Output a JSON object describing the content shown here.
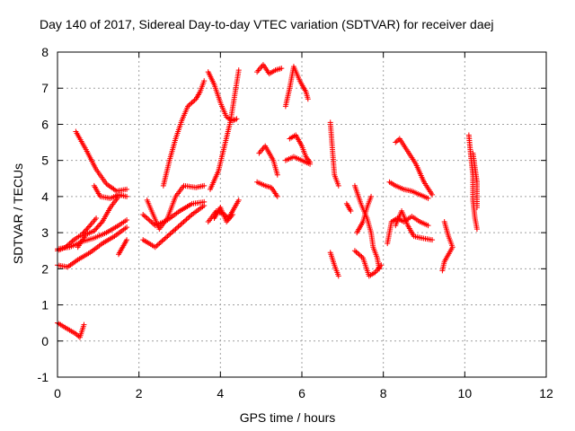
{
  "chart_data": {
    "type": "scatter",
    "title": "Day 140 of 2017, Sidereal Day-to-day VTEC variation (SDTVAR) for receiver daej",
    "xlabel": "GPS time / hours",
    "ylabel": "SDTVAR / TECUs",
    "xlim": [
      0,
      12
    ],
    "ylim": [
      -1,
      8
    ],
    "xticks": [
      "0",
      "2",
      "4",
      "6",
      "8",
      "10",
      "12"
    ],
    "yticks": [
      "-1",
      "0",
      "1",
      "2",
      "3",
      "4",
      "5",
      "6",
      "7",
      "8"
    ],
    "grid": true,
    "marker": "plus",
    "color": "#ff0000",
    "tracks": [
      [
        [
          0.0,
          2.55
        ],
        [
          0.3,
          2.6
        ],
        [
          0.6,
          2.75
        ],
        [
          0.9,
          2.85
        ],
        [
          1.2,
          3.0
        ],
        [
          1.5,
          3.2
        ],
        [
          1.7,
          3.35
        ]
      ],
      [
        [
          0.0,
          2.1
        ],
        [
          0.25,
          2.05
        ],
        [
          0.5,
          2.25
        ],
        [
          0.8,
          2.45
        ],
        [
          1.1,
          2.7
        ],
        [
          1.4,
          2.9
        ],
        [
          1.7,
          3.15
        ]
      ],
      [
        [
          0.0,
          2.5
        ],
        [
          0.2,
          2.6
        ],
        [
          0.4,
          2.8
        ],
        [
          0.6,
          2.95
        ],
        [
          0.8,
          3.2
        ],
        [
          0.95,
          3.4
        ]
      ],
      [
        [
          0.45,
          5.8
        ],
        [
          0.7,
          5.3
        ],
        [
          0.95,
          4.75
        ],
        [
          1.2,
          4.35
        ],
        [
          1.45,
          4.15
        ],
        [
          1.7,
          4.2
        ]
      ],
      [
        [
          0.9,
          4.3
        ],
        [
          1.05,
          4.0
        ],
        [
          1.3,
          3.95
        ],
        [
          1.5,
          4.05
        ],
        [
          1.7,
          4.0
        ]
      ],
      [
        [
          0.5,
          2.6
        ],
        [
          0.7,
          2.95
        ],
        [
          0.9,
          3.05
        ],
        [
          1.1,
          3.3
        ],
        [
          1.3,
          3.7
        ],
        [
          1.5,
          4.0
        ]
      ],
      [
        [
          0.0,
          0.5
        ],
        [
          0.15,
          0.4
        ],
        [
          0.3,
          0.3
        ],
        [
          0.45,
          0.2
        ],
        [
          0.55,
          0.1
        ],
        [
          0.65,
          0.45
        ]
      ],
      [
        [
          1.5,
          2.4
        ],
        [
          1.6,
          2.6
        ],
        [
          1.7,
          2.8
        ]
      ],
      [
        [
          2.1,
          2.8
        ],
        [
          2.4,
          2.6
        ],
        [
          2.7,
          2.9
        ],
        [
          3.0,
          3.2
        ],
        [
          3.3,
          3.5
        ],
        [
          3.6,
          3.75
        ]
      ],
      [
        [
          2.1,
          3.5
        ],
        [
          2.4,
          3.2
        ],
        [
          2.7,
          3.35
        ],
        [
          3.0,
          3.6
        ],
        [
          3.3,
          3.8
        ],
        [
          3.6,
          3.85
        ]
      ],
      [
        [
          2.2,
          3.9
        ],
        [
          2.5,
          3.1
        ],
        [
          2.7,
          3.4
        ],
        [
          2.9,
          4.0
        ],
        [
          3.1,
          4.3
        ],
        [
          3.4,
          4.25
        ],
        [
          3.6,
          4.3
        ]
      ],
      [
        [
          2.6,
          4.3
        ],
        [
          2.75,
          5.0
        ],
        [
          2.9,
          5.6
        ],
        [
          3.05,
          6.1
        ],
        [
          3.2,
          6.5
        ],
        [
          3.4,
          6.7
        ],
        [
          3.5,
          6.9
        ],
        [
          3.6,
          7.2
        ]
      ],
      [
        [
          3.7,
          7.45
        ],
        [
          3.85,
          7.1
        ],
        [
          4.0,
          6.6
        ],
        [
          4.15,
          6.2
        ],
        [
          4.3,
          6.1
        ],
        [
          4.4,
          6.15
        ]
      ],
      [
        [
          3.75,
          4.2
        ],
        [
          3.95,
          4.7
        ],
        [
          4.1,
          5.4
        ],
        [
          4.25,
          6.1
        ],
        [
          4.35,
          6.8
        ],
        [
          4.45,
          7.5
        ]
      ],
      [
        [
          3.7,
          3.3
        ],
        [
          3.9,
          3.6
        ],
        [
          4.1,
          3.5
        ],
        [
          4.2,
          3.4
        ],
        [
          4.3,
          3.6
        ],
        [
          4.45,
          3.9
        ]
      ],
      [
        [
          3.85,
          3.4
        ],
        [
          4.0,
          3.7
        ],
        [
          4.15,
          3.3
        ],
        [
          4.3,
          3.5
        ]
      ],
      [
        [
          4.9,
          7.45
        ],
        [
          5.05,
          7.65
        ],
        [
          5.2,
          7.4
        ],
        [
          5.35,
          7.5
        ],
        [
          5.5,
          7.55
        ]
      ],
      [
        [
          4.9,
          4.4
        ],
        [
          5.1,
          4.3
        ],
        [
          5.25,
          4.25
        ],
        [
          5.4,
          4.0
        ]
      ],
      [
        [
          4.95,
          5.2
        ],
        [
          5.1,
          5.4
        ],
        [
          5.3,
          5.0
        ],
        [
          5.4,
          4.6
        ]
      ],
      [
        [
          5.6,
          6.5
        ],
        [
          5.7,
          7.0
        ],
        [
          5.8,
          7.6
        ],
        [
          5.95,
          7.2
        ],
        [
          6.1,
          6.9
        ],
        [
          6.15,
          6.7
        ]
      ],
      [
        [
          5.7,
          5.6
        ],
        [
          5.85,
          5.7
        ],
        [
          6.0,
          5.4
        ],
        [
          6.1,
          5.1
        ],
        [
          6.2,
          4.95
        ]
      ],
      [
        [
          5.6,
          5.0
        ],
        [
          5.8,
          5.1
        ],
        [
          6.0,
          5.0
        ],
        [
          6.2,
          4.9
        ]
      ],
      [
        [
          6.7,
          6.05
        ],
        [
          6.75,
          5.3
        ],
        [
          6.8,
          4.6
        ],
        [
          6.9,
          4.3
        ]
      ],
      [
        [
          6.7,
          2.45
        ],
        [
          6.8,
          2.1
        ],
        [
          6.9,
          1.8
        ]
      ],
      [
        [
          7.3,
          4.3
        ],
        [
          7.45,
          3.8
        ],
        [
          7.6,
          3.4
        ],
        [
          7.7,
          3.0
        ],
        [
          7.75,
          2.6
        ],
        [
          7.85,
          2.3
        ],
        [
          7.9,
          2.0
        ]
      ],
      [
        [
          7.3,
          2.5
        ],
        [
          7.5,
          2.3
        ],
        [
          7.65,
          1.8
        ],
        [
          7.8,
          1.9
        ],
        [
          7.95,
          2.1
        ]
      ],
      [
        [
          7.35,
          3.0
        ],
        [
          7.5,
          3.3
        ],
        [
          7.6,
          3.7
        ],
        [
          7.7,
          4.0
        ]
      ],
      [
        [
          7.1,
          3.8
        ],
        [
          7.2,
          3.6
        ]
      ],
      [
        [
          8.1,
          2.7
        ],
        [
          8.2,
          3.3
        ],
        [
          8.35,
          3.4
        ],
        [
          8.5,
          3.3
        ],
        [
          8.7,
          3.45
        ],
        [
          8.9,
          3.3
        ],
        [
          9.1,
          3.2
        ]
      ],
      [
        [
          8.3,
          3.2
        ],
        [
          8.45,
          3.6
        ],
        [
          8.6,
          3.2
        ],
        [
          8.75,
          2.9
        ],
        [
          8.95,
          2.85
        ],
        [
          9.2,
          2.8
        ]
      ],
      [
        [
          8.3,
          5.5
        ],
        [
          8.4,
          5.6
        ],
        [
          8.6,
          5.25
        ],
        [
          8.8,
          4.9
        ],
        [
          9.0,
          4.4
        ],
        [
          9.2,
          4.05
        ]
      ],
      [
        [
          8.15,
          4.4
        ],
        [
          8.3,
          4.3
        ],
        [
          8.5,
          4.2
        ],
        [
          8.7,
          4.15
        ],
        [
          8.9,
          4.05
        ],
        [
          9.1,
          3.95
        ]
      ],
      [
        [
          9.5,
          3.3
        ],
        [
          9.6,
          2.9
        ],
        [
          9.7,
          2.6
        ],
        [
          9.5,
          2.2
        ],
        [
          9.45,
          1.95
        ]
      ],
      [
        [
          10.1,
          5.7
        ],
        [
          10.15,
          5.1
        ],
        [
          10.2,
          4.6
        ],
        [
          10.2,
          3.9
        ],
        [
          10.25,
          3.4
        ],
        [
          10.3,
          3.1
        ]
      ],
      [
        [
          10.2,
          5.2
        ],
        [
          10.25,
          4.8
        ],
        [
          10.3,
          4.4
        ],
        [
          10.3,
          3.7
        ]
      ]
    ]
  }
}
